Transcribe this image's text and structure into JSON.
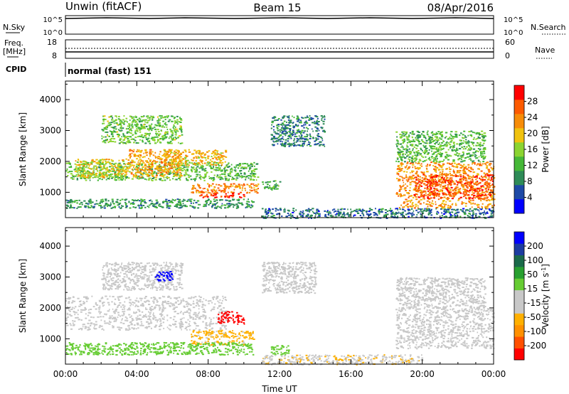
{
  "header": {
    "title_left": "Unwin (fitACF)",
    "title_center": "Beam 15",
    "title_right": "08/Apr/2016"
  },
  "panels": {
    "noise": {
      "left_label": "N.Sky",
      "right_label": "N.Search",
      "left_ticks": [
        "10^5",
        "10^0"
      ],
      "right_ticks": [
        "10^5",
        "10^0"
      ]
    },
    "freq": {
      "left_label_line1": "Freq.",
      "left_label_line2": "[MHz]",
      "right_label": "Nave",
      "left_ticks": [
        "18",
        "8"
      ],
      "right_ticks": [
        "60",
        "0"
      ]
    },
    "cpid": {
      "label": "CPID",
      "value": "normal (fast) 151"
    }
  },
  "colors": {
    "power": [
      "#0000ff",
      "#1d49a6",
      "#2e8b57",
      "#46b838",
      "#8bd431",
      "#f0c20f",
      "#f78c08",
      "#fd5a00",
      "#ff0000"
    ],
    "velocity": [
      "#ff0000",
      "#ff5000",
      "#ff9000",
      "#ffb000",
      "#c8c8c8",
      "#c8c8c8",
      "#66cc33",
      "#28a030",
      "#1a6a4a",
      "#1c3ca0",
      "#0000ff"
    ]
  },
  "chart_data": [
    {
      "type": "heatmap",
      "name": "power",
      "xlabel": "",
      "ylabel": "Slant Range [km]",
      "x_range_hours": [
        0,
        24
      ],
      "ylim": [
        180,
        4600
      ],
      "yticks": [
        "1000",
        "2000",
        "3000",
        "4000"
      ],
      "colorbar": {
        "label": "Power [dB]",
        "ticks": [
          "28",
          "24",
          "20",
          "16",
          "12",
          "8",
          "4"
        ],
        "range": [
          0,
          32
        ]
      },
      "regions": [
        {
          "t": [
            0.0,
            10.8
          ],
          "r": [
            1400,
            2000
          ],
          "value": 13
        },
        {
          "t": [
            0.5,
            3.5
          ],
          "r": [
            1500,
            2100
          ],
          "value": 19
        },
        {
          "t": [
            3.5,
            6.5
          ],
          "r": [
            1500,
            2400
          ],
          "value": 22
        },
        {
          "t": [
            5.5,
            9.0
          ],
          "r": [
            1900,
            2400
          ],
          "value": 21
        },
        {
          "t": [
            7.0,
            10.8
          ],
          "r": [
            1000,
            1300
          ],
          "value": 24
        },
        {
          "t": [
            7.5,
            10.0
          ],
          "r": [
            850,
            1000
          ],
          "value": 29
        },
        {
          "t": [
            2.0,
            6.5
          ],
          "r": [
            2600,
            3500
          ],
          "value": 14
        },
        {
          "t": [
            0.0,
            10.5
          ],
          "r": [
            500,
            800
          ],
          "value": 10
        },
        {
          "t": [
            11.5,
            14.5
          ],
          "r": [
            2500,
            3500
          ],
          "value": 8
        },
        {
          "t": [
            11.0,
            12.0
          ],
          "r": [
            1100,
            1400
          ],
          "value": 12
        },
        {
          "t": [
            11.0,
            24.0
          ],
          "r": [
            180,
            500
          ],
          "value": 7
        },
        {
          "t": [
            18.5,
            24.0
          ],
          "r": [
            500,
            2000
          ],
          "value": 23
        },
        {
          "t": [
            19.5,
            24.0
          ],
          "r": [
            800,
            1600
          ],
          "value": 27
        },
        {
          "t": [
            18.5,
            23.5
          ],
          "r": [
            2000,
            3000
          ],
          "value": 13
        }
      ]
    },
    {
      "type": "heatmap",
      "name": "velocity",
      "xlabel": "Time UT",
      "ylabel": "Slant Range [km]",
      "x_range_hours": [
        0,
        24
      ],
      "xticks": [
        "00:00",
        "04:00",
        "08:00",
        "12:00",
        "16:00",
        "20:00",
        "00:00"
      ],
      "ylim": [
        180,
        4600
      ],
      "yticks": [
        "1000",
        "2000",
        "3000",
        "4000"
      ],
      "colorbar": {
        "label": "Velocity [m s^-1]",
        "ticks": [
          "200",
          "100",
          "50",
          "15",
          "-15",
          "-50",
          "-100",
          "-200"
        ],
        "range": [
          -250,
          250
        ]
      },
      "regions": [
        {
          "t": [
            0.0,
            9.0
          ],
          "r": [
            1300,
            2400
          ],
          "value": 0
        },
        {
          "t": [
            2.0,
            6.5
          ],
          "r": [
            2600,
            3500
          ],
          "value": 0
        },
        {
          "t": [
            5.0,
            6.0
          ],
          "r": [
            2900,
            3200
          ],
          "value": 220
        },
        {
          "t": [
            8.5,
            10.0
          ],
          "r": [
            1500,
            1900
          ],
          "value": -220
        },
        {
          "t": [
            7.0,
            10.5
          ],
          "r": [
            1000,
            1300
          ],
          "value": -80
        },
        {
          "t": [
            7.0,
            10.0
          ],
          "r": [
            820,
            960
          ],
          "value": -80
        },
        {
          "t": [
            0.0,
            10.5
          ],
          "r": [
            500,
            900
          ],
          "value": 40
        },
        {
          "t": [
            11.0,
            14.0
          ],
          "r": [
            2500,
            3500
          ],
          "value": 0
        },
        {
          "t": [
            11.5,
            12.5
          ],
          "r": [
            500,
            800
          ],
          "value": 40
        },
        {
          "t": [
            11.0,
            20.0
          ],
          "r": [
            180,
            500
          ],
          "value": -60
        },
        {
          "t": [
            18.5,
            24.0
          ],
          "r": [
            700,
            2000
          ],
          "value": 0
        },
        {
          "t": [
            18.5,
            23.5
          ],
          "r": [
            2000,
            3000
          ],
          "value": 0
        }
      ]
    }
  ]
}
